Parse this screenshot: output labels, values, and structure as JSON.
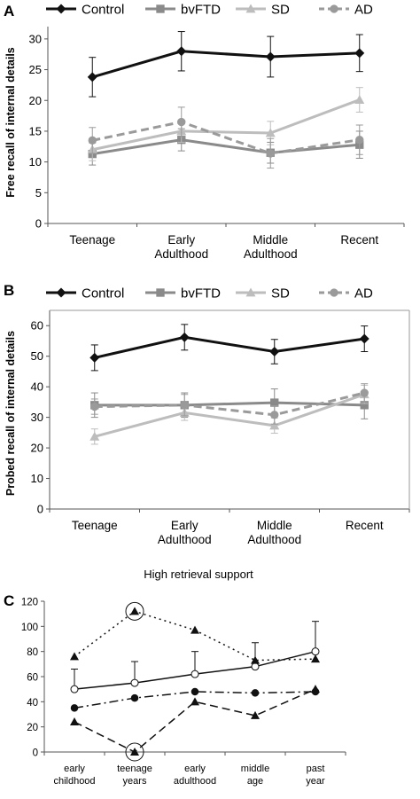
{
  "chart_data": [
    {
      "type": "line",
      "panel": "A",
      "title": "",
      "ylabel": "Free recall of internal details",
      "xlabel": "",
      "categories": [
        "Teenage",
        "Early Adulthood",
        "Middle Adulthood",
        "Recent"
      ],
      "yticks": [
        "0",
        "5",
        "10",
        "15",
        "20",
        "25",
        "30"
      ],
      "ylim": [
        0,
        32
      ],
      "legend": "top",
      "grid": false,
      "series": [
        {
          "name": "Control",
          "color": "#111111",
          "dash": "solid",
          "marker": "diamond",
          "values": [
            23.8,
            28.0,
            27.1,
            27.7
          ],
          "err": [
            3.2,
            3.2,
            3.3,
            3.0
          ]
        },
        {
          "name": "bvFTD",
          "color": "#8a8a8a",
          "dash": "solid",
          "marker": "square",
          "values": [
            11.3,
            13.6,
            11.5,
            12.8
          ],
          "err": [
            1.8,
            1.8,
            1.7,
            2.2
          ]
        },
        {
          "name": "SD",
          "color": "#bdbdbd",
          "dash": "solid",
          "marker": "triangle",
          "values": [
            12.0,
            15.0,
            14.7,
            20.1
          ],
          "err": [
            1.8,
            1.8,
            1.9,
            2.0
          ]
        },
        {
          "name": "AD",
          "color": "#9a9a9a",
          "dash": "dashed",
          "marker": "circle",
          "values": [
            13.5,
            16.5,
            11.4,
            13.6
          ],
          "err": [
            2.1,
            2.4,
            2.4,
            2.4
          ]
        }
      ]
    },
    {
      "type": "line",
      "panel": "B",
      "title": "",
      "ylabel": "Probed recall of internal details",
      "xlabel": "",
      "categories": [
        "Teenage",
        "Early Adulthood",
        "Middle Adulthood",
        "Recent"
      ],
      "yticks": [
        "0",
        "10",
        "20",
        "30",
        "40",
        "50",
        "60"
      ],
      "ylim": [
        0,
        65
      ],
      "legend": "top",
      "grid": false,
      "series": [
        {
          "name": "Control",
          "color": "#111111",
          "dash": "solid",
          "marker": "diamond",
          "values": [
            49.5,
            56.2,
            51.5,
            55.7
          ],
          "err": [
            4.2,
            4.2,
            4.0,
            4.2
          ]
        },
        {
          "name": "bvFTD",
          "color": "#8a8a8a",
          "dash": "solid",
          "marker": "square",
          "values": [
            34.0,
            34.0,
            34.8,
            34.0
          ],
          "err": [
            4.0,
            4.0,
            4.5,
            4.5
          ]
        },
        {
          "name": "SD",
          "color": "#bdbdbd",
          "dash": "solid",
          "marker": "triangle",
          "values": [
            23.7,
            31.5,
            27.3,
            37.5
          ],
          "err": [
            2.5,
            2.5,
            2.5,
            3.0
          ]
        },
        {
          "name": "AD",
          "color": "#9a9a9a",
          "dash": "dashed",
          "marker": "circle",
          "values": [
            33.5,
            34.0,
            30.8,
            38.0
          ],
          "err": [
            2.5,
            3.5,
            3.0,
            3.0
          ]
        }
      ]
    },
    {
      "type": "line",
      "panel": "C",
      "title": "High retrieval support",
      "ylabel": "",
      "xlabel": "",
      "categories": [
        "early childhood",
        "teenage years",
        "early adulthood",
        "middle age",
        "past year"
      ],
      "yticks": [
        "0",
        "20",
        "40",
        "60",
        "80",
        "100",
        "120"
      ],
      "ylim": [
        0,
        120
      ],
      "legend": "none",
      "grid": false,
      "circled_points": [
        {
          "series": 1,
          "index": 1
        },
        {
          "series": 2,
          "index": 1
        }
      ],
      "series": [
        {
          "name": "",
          "color": "#111111",
          "dash": "solid",
          "marker": "open-circle",
          "values": [
            50,
            55,
            62,
            68,
            80
          ],
          "err_up": [
            16,
            17,
            18,
            19,
            24
          ]
        },
        {
          "name": "",
          "color": "#111111",
          "dash": "dotted",
          "marker": "filled-triangle",
          "values": [
            76,
            112,
            97,
            73,
            74
          ],
          "err_up": [
            0,
            0,
            0,
            0,
            0
          ]
        },
        {
          "name": "",
          "color": "#111111",
          "dash": "dashed",
          "marker": "filled-triangle",
          "values": [
            24,
            0,
            40,
            29,
            50
          ],
          "err_up": [
            0,
            0,
            0,
            0,
            0
          ]
        },
        {
          "name": "",
          "color": "#111111",
          "dash": "dashdot",
          "marker": "filled-circle",
          "values": [
            35,
            43,
            48,
            47,
            48
          ],
          "err_up": [
            0,
            0,
            0,
            0,
            0
          ]
        }
      ]
    }
  ]
}
